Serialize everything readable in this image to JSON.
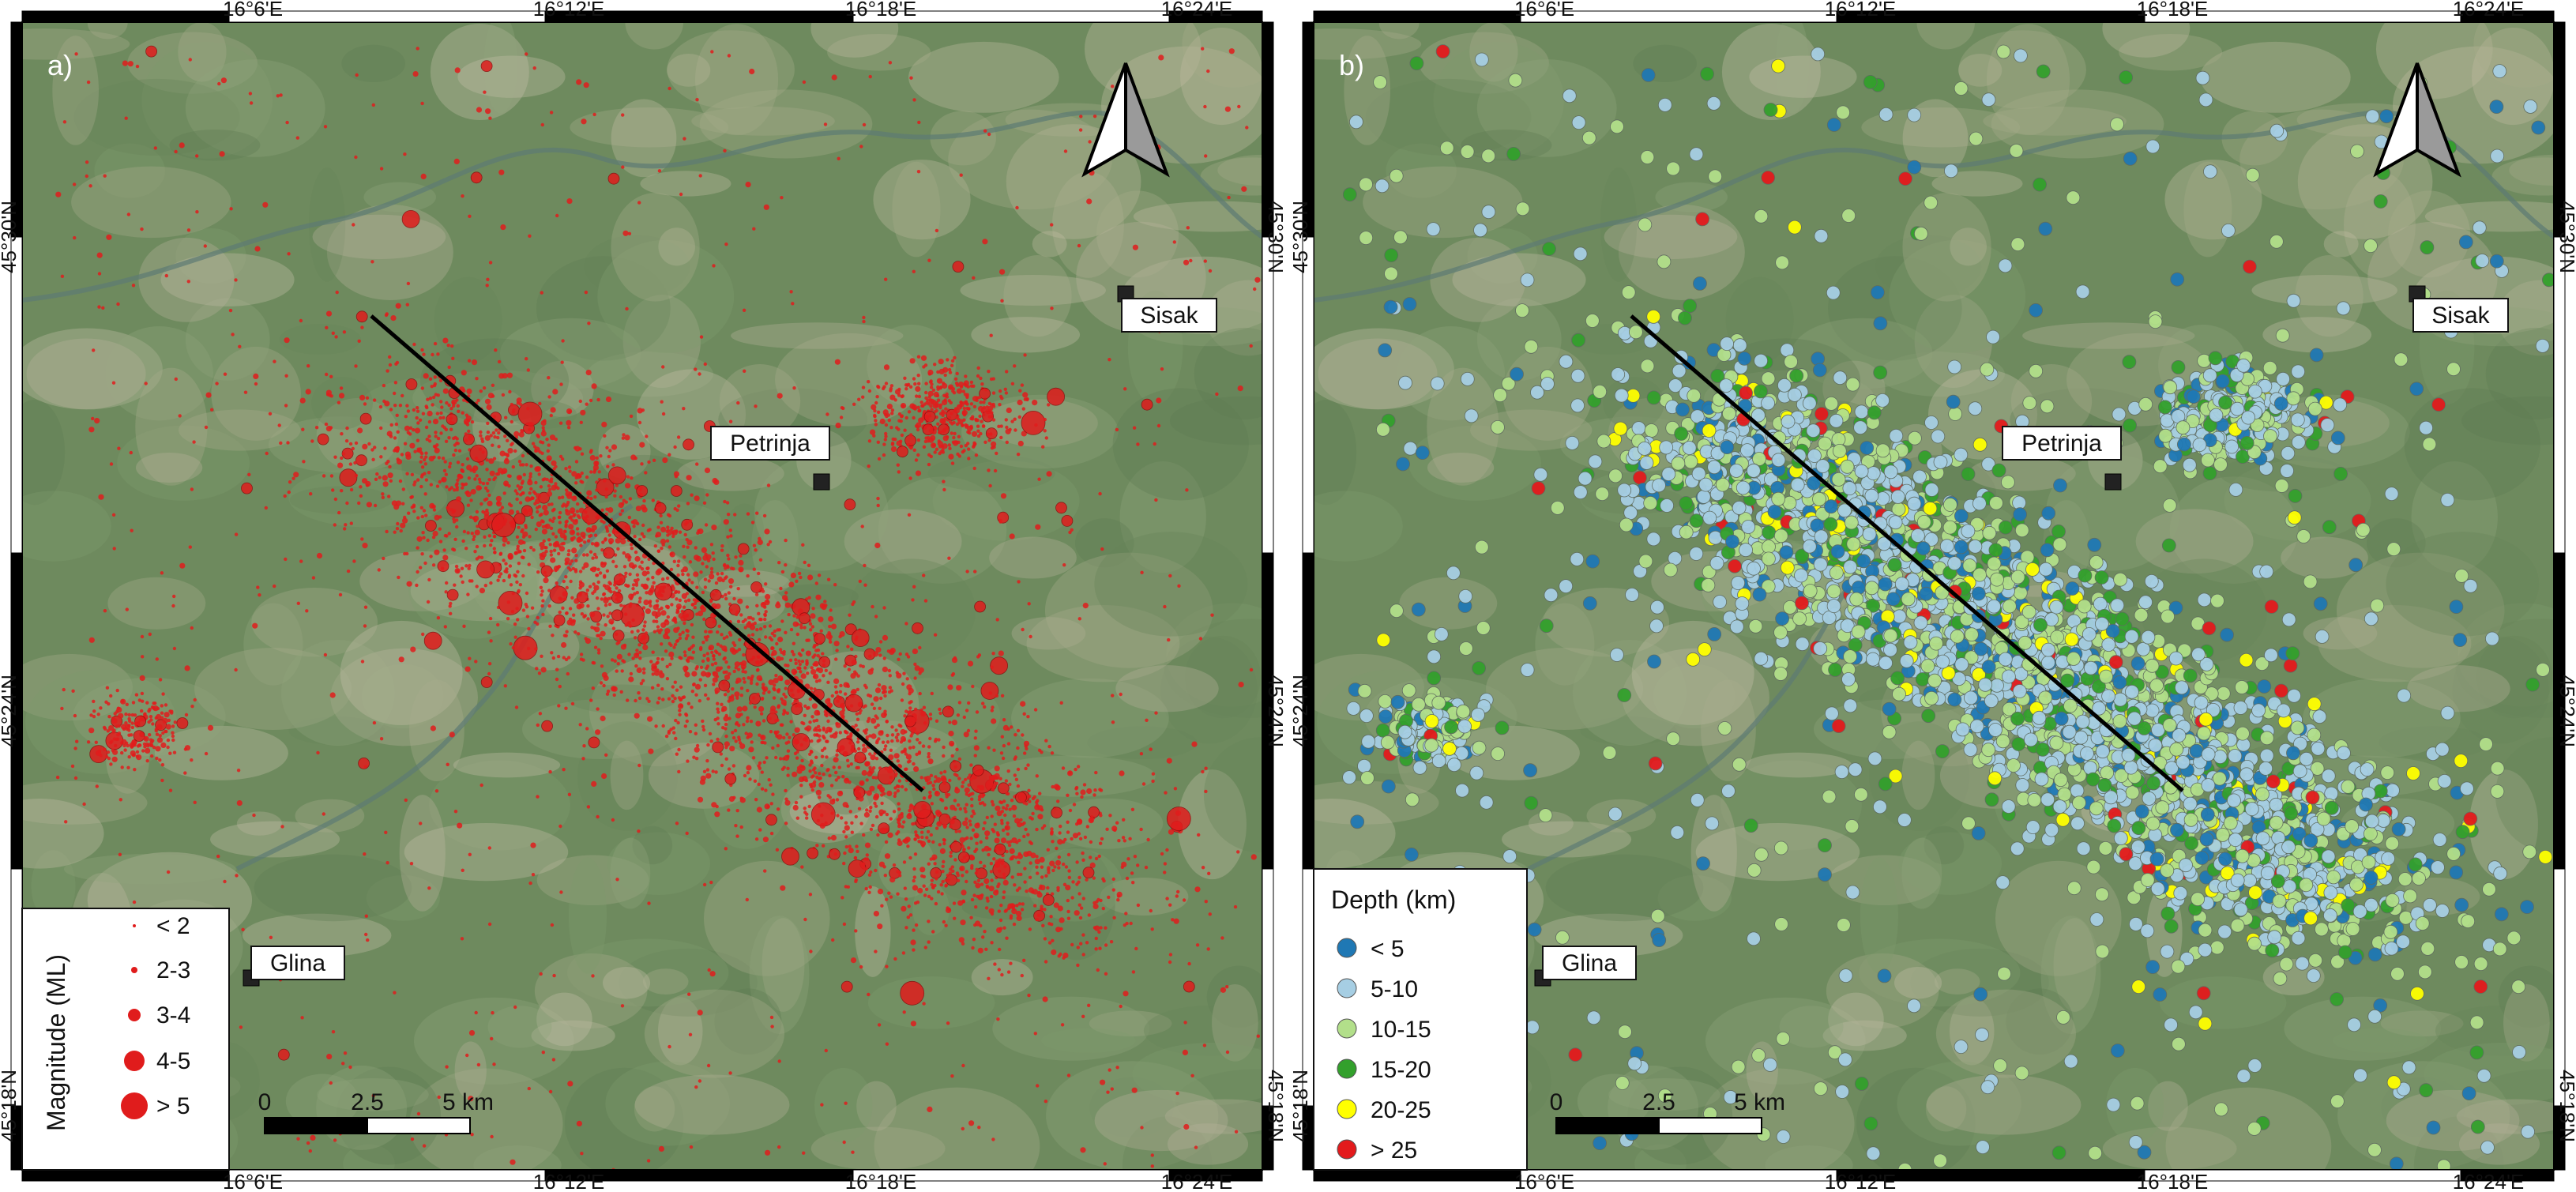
{
  "panels": [
    {
      "id": "a",
      "label": "a)",
      "legend_title": "Magnitude (ML)",
      "legend_items": [
        "< 2",
        "2-3",
        "3-4",
        "4-5",
        "> 5"
      ]
    },
    {
      "id": "b",
      "label": "b)",
      "legend_title": "Depth (km)",
      "legend_items": [
        "< 5",
        "5-10",
        "10-15",
        "15-20",
        "20-25",
        "> 25"
      ]
    }
  ],
  "lon_ticks": [
    "16°6'E",
    "16°12'E",
    "16°18'E",
    "16°24'E"
  ],
  "lat_ticks": [
    "45°30'N",
    "45°24'N",
    "45°18'N"
  ],
  "places": {
    "petrinja": "Petrinja",
    "sisak": "Sisak",
    "glina": "Glina"
  },
  "scalebar": {
    "zero": "0",
    "mid": "2.5",
    "end": "5 km"
  },
  "colors": {
    "magnitude_dot": "#e01c1c",
    "depth": [
      "#1f78b4",
      "#a6cee3",
      "#b2df8a",
      "#33a02c",
      "#ffff00",
      "#e31a1c"
    ],
    "fault_line": "#000000",
    "background_imagery": "#6e8a5e"
  },
  "icons": {
    "north_arrow": "north-arrow-icon"
  }
}
